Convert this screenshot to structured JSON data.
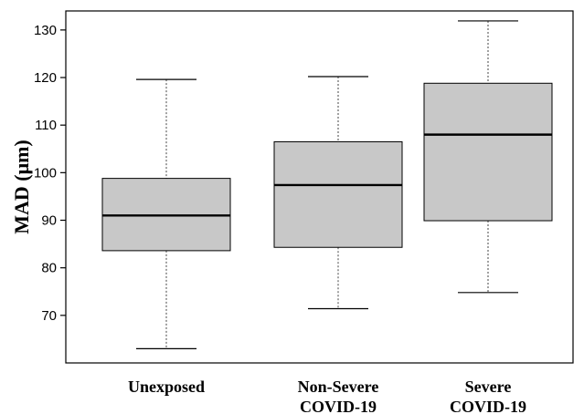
{
  "chart_data": {
    "type": "boxplot",
    "ylabel": "MAD (μm)",
    "xlabel": "",
    "title": "",
    "ylim": [
      60,
      134
    ],
    "yticks": [
      70,
      80,
      90,
      100,
      110,
      120,
      130
    ],
    "grid": false,
    "box_color": "#c8c8c8",
    "categories": [
      {
        "label_lines": [
          "Unexposed"
        ],
        "min": 63,
        "q1": 83.6,
        "median": 91,
        "q3": 98.8,
        "max": 119.6
      },
      {
        "label_lines": [
          "Non-Severe",
          "COVID-19"
        ],
        "min": 71.4,
        "q1": 84.3,
        "median": 97.4,
        "q3": 106.5,
        "max": 120.2
      },
      {
        "label_lines": [
          "Severe",
          "COVID-19"
        ],
        "min": 74.8,
        "q1": 89.9,
        "median": 108,
        "q3": 118.8,
        "max": 131.9
      }
    ]
  }
}
